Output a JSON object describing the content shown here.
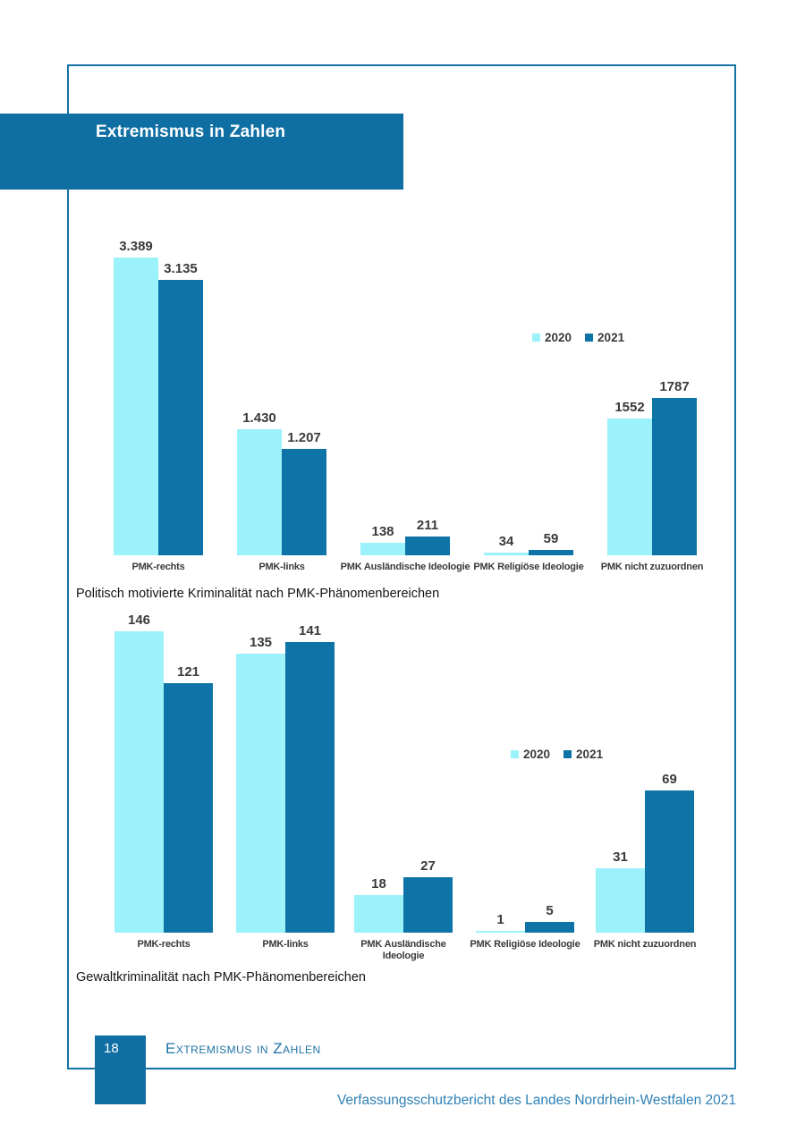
{
  "banner": {
    "title": "Extremismus in Zahlen"
  },
  "footer": {
    "page_number": "18",
    "running_head": "Extremismus in Zahlen",
    "report_title": "Verfassungsschutzbericht des Landes Nordrhein-Westfalen 2021"
  },
  "colors": {
    "banner_bg": "#0f6fa3",
    "frame_border": "#1473a5",
    "bar_2020": "#9bf2fa",
    "bar_2021": "#0e73a6",
    "chart_label_text": "#3a3a3a",
    "running_head_text": "#1f72a5",
    "report_title_text": "#2f81b7",
    "page_number_box_bg": "#0f6fa3"
  },
  "chart_data": [
    {
      "type": "bar",
      "title": "Politisch motivierte Kriminalität nach PMK-Phänomenbereichen",
      "categories": [
        "PMK-rechts",
        "PMK-links",
        "PMK Ausländische Ideologie",
        "PMK Religiöse Ideologie",
        "PMK nicht zuzuordnen"
      ],
      "series": [
        {
          "name": "2020",
          "values": [
            3389,
            1430,
            138,
            34,
            1552
          ],
          "display": [
            "3.389",
            "1.430",
            "138",
            "34",
            "1552"
          ]
        },
        {
          "name": "2021",
          "values": [
            3135,
            1207,
            211,
            59,
            1787
          ],
          "display": [
            "3.135",
            "1.207",
            "211",
            "59",
            "1787"
          ]
        }
      ],
      "legend_entries": [
        "2020",
        "2021"
      ],
      "legend_position": "center-right",
      "grid": false,
      "axes_visible": false,
      "value_labels": true,
      "ylim": [
        0,
        3389
      ]
    },
    {
      "type": "bar",
      "title": "Gewaltkriminalität nach PMK-Phänomenbereichen",
      "categories": [
        "PMK-rechts",
        "PMK-links",
        "PMK Ausländische Ideologie",
        "PMK Religiöse Ideologie",
        "PMK nicht zuzuordnen"
      ],
      "category_display": [
        "PMK-rechts",
        "PMK-links",
        "PMK Ausländische\nIdeologie",
        "PMK Religiöse Ideologie",
        "PMK nicht zuzuordnen"
      ],
      "series": [
        {
          "name": "2020",
          "values": [
            146,
            135,
            18,
            1,
            31
          ],
          "display": [
            "146",
            "135",
            "18",
            "1",
            "31"
          ]
        },
        {
          "name": "2021",
          "values": [
            121,
            141,
            27,
            5,
            69
          ],
          "display": [
            "121",
            "141",
            "27",
            "5",
            "69"
          ]
        }
      ],
      "legend_entries": [
        "2020",
        "2021"
      ],
      "legend_position": "center-right",
      "grid": false,
      "axes_visible": false,
      "value_labels": true,
      "ylim": [
        0,
        146
      ]
    }
  ]
}
